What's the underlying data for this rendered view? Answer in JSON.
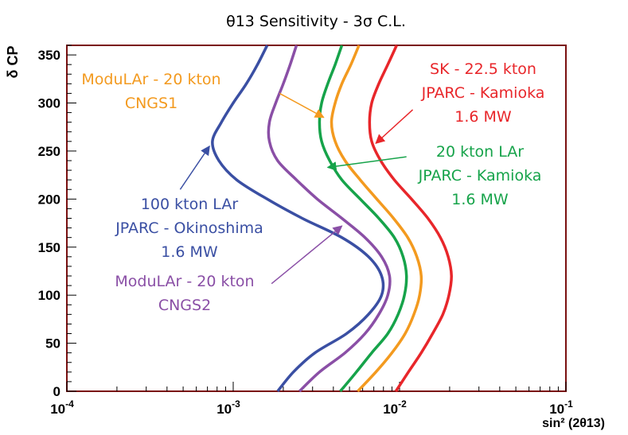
{
  "chart_data": {
    "type": "line",
    "title": "θ13 Sensitivity  - 3σ C.L.",
    "xlabel": "sin² (2θ13)",
    "ylabel": "δ CP",
    "xscale": "log",
    "xlim": [
      0.0001,
      0.1
    ],
    "ylim": [
      0,
      360
    ],
    "x_ticks": [
      {
        "value": 0.0001,
        "label": "10-4",
        "base": "10",
        "exp": "-4"
      },
      {
        "value": 0.001,
        "label": "10-3",
        "base": "10",
        "exp": "-3"
      },
      {
        "value": 0.01,
        "label": "10-2",
        "base": "10",
        "exp": "-2"
      },
      {
        "value": 0.1,
        "label": "10-1",
        "base": "10",
        "exp": "-1"
      }
    ],
    "y_ticks": [
      0,
      50,
      100,
      150,
      200,
      250,
      300,
      350
    ],
    "series": [
      {
        "name": "100 kton LAr JPARC - Okinoshima 1.6 MW",
        "color": "#3a4fa3",
        "points": [
          [
            0.00185,
            0
          ],
          [
            0.0023,
            20
          ],
          [
            0.0031,
            40
          ],
          [
            0.0048,
            60
          ],
          [
            0.0065,
            80
          ],
          [
            0.0078,
            100
          ],
          [
            0.0078,
            120
          ],
          [
            0.0065,
            140
          ],
          [
            0.0045,
            160
          ],
          [
            0.0026,
            180
          ],
          [
            0.0016,
            200
          ],
          [
            0.00105,
            220
          ],
          [
            0.00082,
            240
          ],
          [
            0.00075,
            260
          ],
          [
            0.00085,
            280
          ],
          [
            0.001,
            300
          ],
          [
            0.0012,
            320
          ],
          [
            0.0014,
            340
          ],
          [
            0.0016,
            360
          ]
        ]
      },
      {
        "name": "ModuLAr - 20 kton CNGS2",
        "color": "#8a4fa6",
        "points": [
          [
            0.0025,
            0
          ],
          [
            0.0033,
            20
          ],
          [
            0.0047,
            40
          ],
          [
            0.0062,
            60
          ],
          [
            0.0075,
            80
          ],
          [
            0.0085,
            100
          ],
          [
            0.0087,
            120
          ],
          [
            0.0078,
            140
          ],
          [
            0.0062,
            160
          ],
          [
            0.0045,
            180
          ],
          [
            0.0032,
            200
          ],
          [
            0.0024,
            220
          ],
          [
            0.00185,
            240
          ],
          [
            0.00165,
            260
          ],
          [
            0.00165,
            280
          ],
          [
            0.0018,
            300
          ],
          [
            0.002,
            320
          ],
          [
            0.0022,
            340
          ],
          [
            0.0024,
            360
          ]
        ]
      },
      {
        "name": "20 kton LAr JPARC - Kamioka 1.6 MW",
        "color": "#16a34a",
        "points": [
          [
            0.0044,
            0
          ],
          [
            0.0055,
            20
          ],
          [
            0.0068,
            40
          ],
          [
            0.0085,
            60
          ],
          [
            0.0098,
            80
          ],
          [
            0.0107,
            100
          ],
          [
            0.011,
            120
          ],
          [
            0.0105,
            140
          ],
          [
            0.0093,
            160
          ],
          [
            0.0075,
            180
          ],
          [
            0.0058,
            200
          ],
          [
            0.0045,
            220
          ],
          [
            0.0038,
            240
          ],
          [
            0.0034,
            260
          ],
          [
            0.0033,
            280
          ],
          [
            0.0034,
            300
          ],
          [
            0.0037,
            320
          ],
          [
            0.0041,
            340
          ],
          [
            0.0045,
            360
          ]
        ]
      },
      {
        "name": "ModuLAr - 20 kton CNGS1",
        "color": "#f39a1f",
        "points": [
          [
            0.0056,
            0
          ],
          [
            0.0072,
            20
          ],
          [
            0.009,
            40
          ],
          [
            0.0108,
            60
          ],
          [
            0.0122,
            80
          ],
          [
            0.0132,
            100
          ],
          [
            0.0135,
            120
          ],
          [
            0.0127,
            140
          ],
          [
            0.0112,
            160
          ],
          [
            0.0092,
            180
          ],
          [
            0.0073,
            200
          ],
          [
            0.0058,
            220
          ],
          [
            0.0047,
            240
          ],
          [
            0.0041,
            260
          ],
          [
            0.0039,
            280
          ],
          [
            0.0041,
            300
          ],
          [
            0.0045,
            320
          ],
          [
            0.0051,
            340
          ],
          [
            0.0057,
            360
          ]
        ]
      },
      {
        "name": "SK - 22.5 kton JPARC - Kamioka 1.6 MW",
        "color": "#e8262a",
        "points": [
          [
            0.0095,
            0
          ],
          [
            0.0113,
            20
          ],
          [
            0.0135,
            40
          ],
          [
            0.0158,
            60
          ],
          [
            0.0182,
            80
          ],
          [
            0.0198,
            100
          ],
          [
            0.0205,
            120
          ],
          [
            0.0196,
            140
          ],
          [
            0.0176,
            160
          ],
          [
            0.0148,
            180
          ],
          [
            0.0118,
            200
          ],
          [
            0.0093,
            220
          ],
          [
            0.0077,
            240
          ],
          [
            0.0068,
            260
          ],
          [
            0.0066,
            280
          ],
          [
            0.0068,
            300
          ],
          [
            0.0075,
            320
          ],
          [
            0.0085,
            340
          ],
          [
            0.0096,
            360
          ]
        ]
      }
    ],
    "annotations": [
      {
        "lines": [
          "ModuLAr - 20 kton",
          "CNGS1"
        ],
        "color": "#f39a1f",
        "arrow_from": [
          0.0019,
          310
        ],
        "arrow_to": [
          0.0035,
          285
        ]
      },
      {
        "lines": [
          "100 kton LAr",
          "JPARC - Okinoshima",
          "1.6 MW"
        ],
        "color": "#3a4fa3",
        "arrow_from": [
          0.00048,
          210
        ],
        "arrow_to": [
          0.00072,
          255
        ]
      },
      {
        "lines": [
          "ModuLAr - 20 kton",
          "CNGS2"
        ],
        "color": "#8a4fa6",
        "arrow_from": [
          0.0017,
          112
        ],
        "arrow_to": [
          0.0045,
          172
        ]
      },
      {
        "lines": [
          "SK - 22.5 kton",
          "JPARC - Kamioka",
          "1.6 MW"
        ],
        "color": "#e8262a",
        "arrow_from": [
          0.012,
          293
        ],
        "arrow_to": [
          0.0072,
          258
        ]
      },
      {
        "lines": [
          "20 kton LAr",
          "JPARC - Kamioka",
          "1.6 MW"
        ],
        "color": "#16a34a",
        "arrow_from": [
          0.011,
          244
        ],
        "arrow_to": [
          0.0037,
          233
        ]
      }
    ]
  }
}
